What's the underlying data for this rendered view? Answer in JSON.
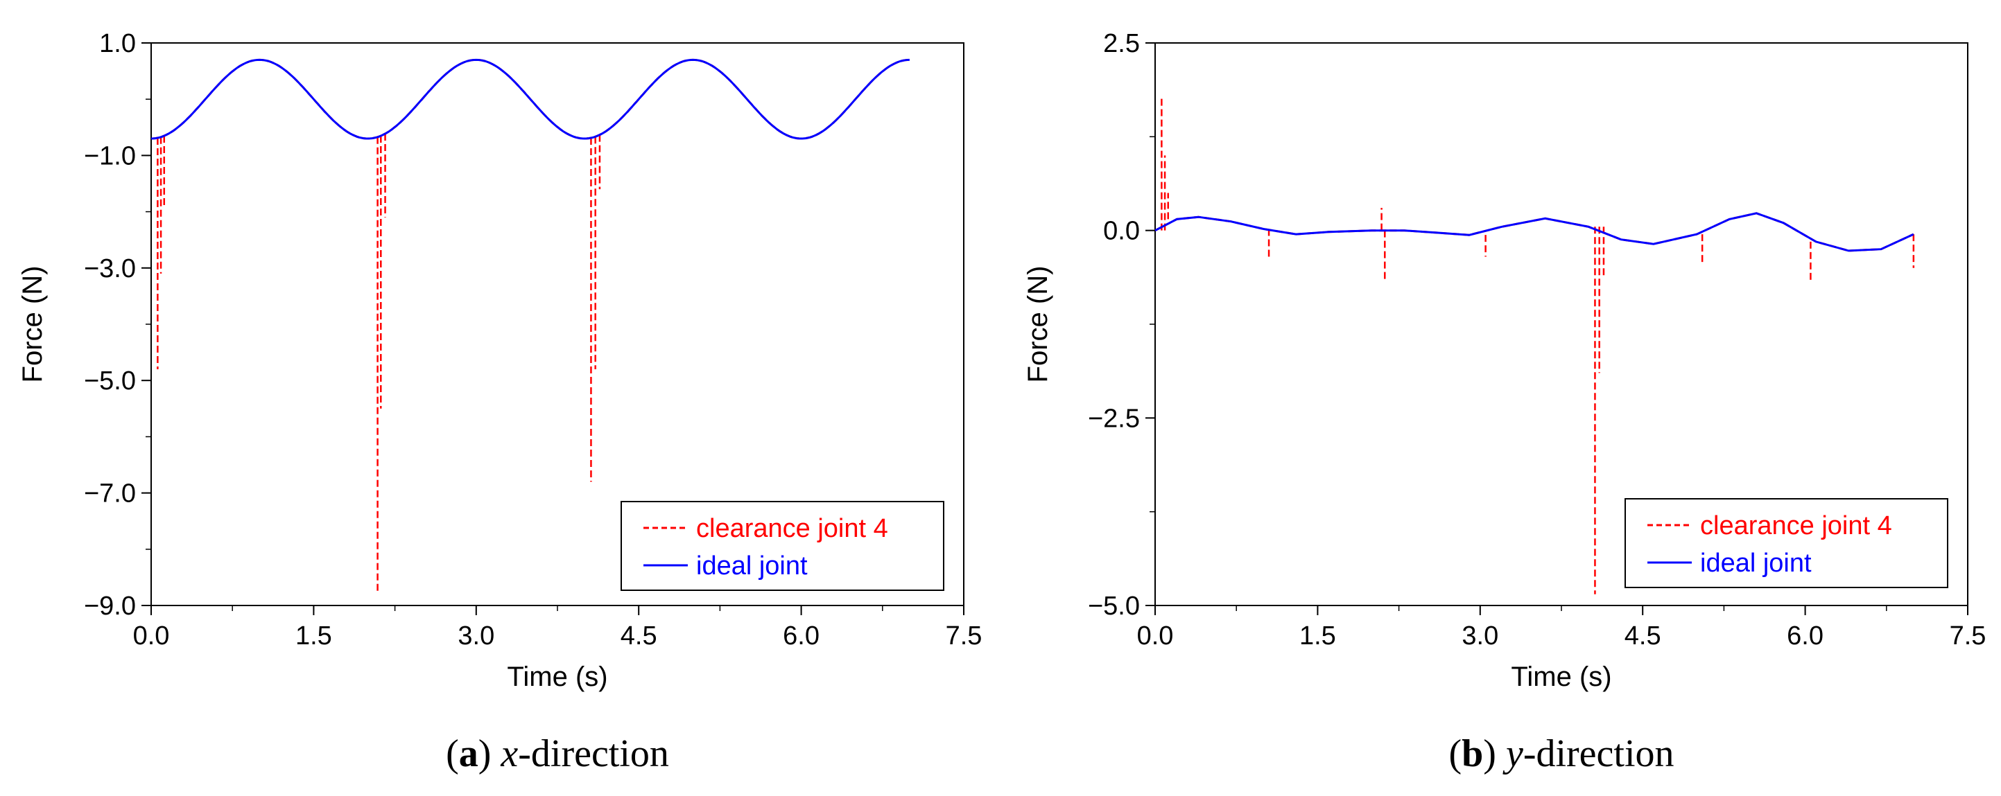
{
  "chart_data": [
    {
      "type": "line",
      "id": "a",
      "xlabel": "Time (s)",
      "ylabel": "Force (N)",
      "xlim": [
        0,
        7.5
      ],
      "ylim": [
        -9,
        1
      ],
      "xticks": [
        0,
        1.5,
        3,
        4.5,
        6,
        7.5
      ],
      "xtick_labels": [
        "0.0",
        "1.5",
        "3.0",
        "4.5",
        "6.0",
        "7.5"
      ],
      "yticks": [
        1,
        -1,
        -3,
        -5,
        -7,
        -9
      ],
      "ytick_labels": [
        "1.0",
        "−1.0",
        "−3.0",
        "−5.0",
        "−7.0",
        "−9.0"
      ],
      "caption_letter": "a",
      "caption_var": "x",
      "caption_text": "-direction",
      "series": [
        {
          "name": "clearance joint 4",
          "style": "dashed",
          "color": "#ff0000",
          "ideal": {
            "kind": "sin",
            "amp": 0.7,
            "period": 2,
            "phase": -0.25
          },
          "spikes": [
            {
              "t": 0.06,
              "v": -4.8
            },
            {
              "t": 0.09,
              "v": -3.1
            },
            {
              "t": 0.12,
              "v": -1.9
            },
            {
              "t": 2.09,
              "v": -8.8
            },
            {
              "t": 2.12,
              "v": -5.5
            },
            {
              "t": 2.16,
              "v": -2.1
            },
            {
              "t": 4.06,
              "v": -6.8
            },
            {
              "t": 4.1,
              "v": -4.8
            },
            {
              "t": 4.14,
              "v": -1.6
            }
          ]
        },
        {
          "name": "ideal joint",
          "style": "solid",
          "color": "#0000ff",
          "function": {
            "kind": "sin",
            "amp": 0.7,
            "period": 2,
            "phase": -0.25
          },
          "t_range": [
            0,
            7.0
          ]
        }
      ]
    },
    {
      "type": "line",
      "id": "b",
      "xlabel": "Time (s)",
      "ylabel": "Force (N)",
      "xlim": [
        0,
        7.5
      ],
      "ylim": [
        -5,
        2.5
      ],
      "xticks": [
        0,
        1.5,
        3,
        4.5,
        6,
        7.5
      ],
      "xtick_labels": [
        "0.0",
        "1.5",
        "3.0",
        "4.5",
        "6.0",
        "7.5"
      ],
      "yticks": [
        2.5,
        0,
        -2.5,
        -5
      ],
      "ytick_labels": [
        "2.5",
        "0.0",
        "−2.5",
        "−5.0"
      ],
      "caption_letter": "b",
      "caption_var": "y",
      "caption_text": "-direction",
      "series": [
        {
          "name": "clearance joint 4",
          "style": "dashed",
          "color": "#ff0000",
          "spikes": [
            {
              "t": 0.06,
              "v": 1.8
            },
            {
              "t": 0.09,
              "v": 1.0
            },
            {
              "t": 0.12,
              "v": 0.5
            },
            {
              "t": 2.09,
              "v": 0.3
            },
            {
              "t": 2.12,
              "v": -0.65
            },
            {
              "t": 4.06,
              "v": -4.85
            },
            {
              "t": 4.1,
              "v": -1.9
            },
            {
              "t": 4.14,
              "v": -0.6
            },
            {
              "t": 1.05,
              "v": -0.35
            },
            {
              "t": 3.05,
              "v": -0.35
            },
            {
              "t": 5.05,
              "v": -0.45
            },
            {
              "t": 6.05,
              "v": -0.7
            },
            {
              "t": 7.0,
              "v": -0.5
            }
          ]
        },
        {
          "name": "ideal joint",
          "style": "solid",
          "color": "#0000ff",
          "points": [
            [
              0,
              0
            ],
            [
              0.2,
              0.15
            ],
            [
              0.4,
              0.18
            ],
            [
              0.7,
              0.12
            ],
            [
              1.0,
              0.02
            ],
            [
              1.3,
              -0.05
            ],
            [
              1.6,
              -0.02
            ],
            [
              2.0,
              0.0
            ],
            [
              2.3,
              0.0
            ],
            [
              2.6,
              -0.03
            ],
            [
              2.9,
              -0.06
            ],
            [
              3.2,
              0.05
            ],
            [
              3.6,
              0.16
            ],
            [
              4.0,
              0.05
            ],
            [
              4.3,
              -0.12
            ],
            [
              4.6,
              -0.18
            ],
            [
              5.0,
              -0.05
            ],
            [
              5.3,
              0.15
            ],
            [
              5.55,
              0.23
            ],
            [
              5.8,
              0.1
            ],
            [
              6.1,
              -0.15
            ],
            [
              6.4,
              -0.27
            ],
            [
              6.7,
              -0.25
            ],
            [
              7.0,
              -0.05
            ]
          ]
        }
      ]
    }
  ]
}
